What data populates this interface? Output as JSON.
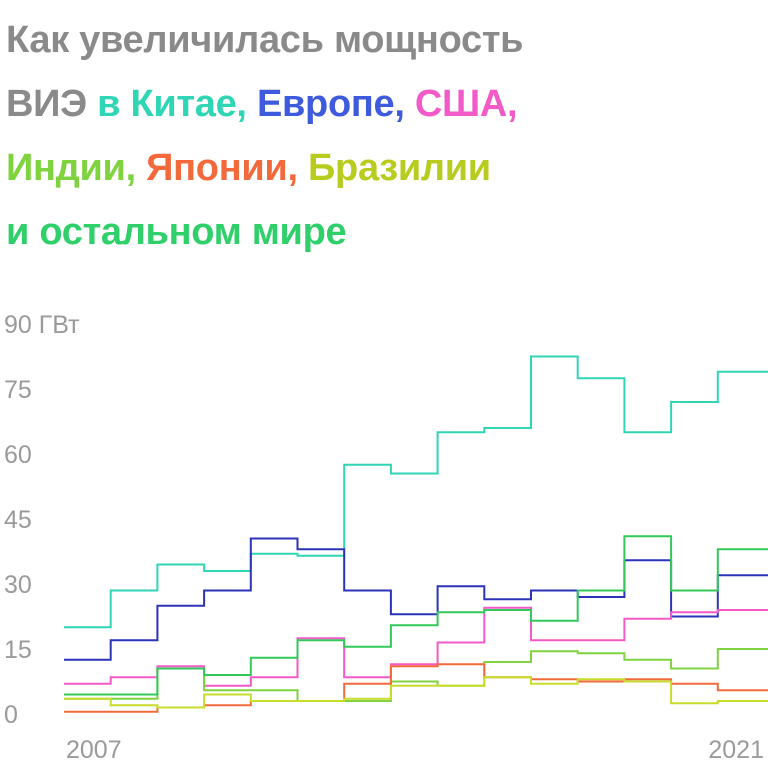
{
  "title": {
    "parts": [
      {
        "text": "Как увеличилась мощность",
        "color": "#8a8a8a"
      },
      {
        "text": "ВИЭ",
        "color": "#8a8a8a"
      },
      {
        "text": "в Китае,",
        "color": "#2fd6b6"
      },
      {
        "text": "Европе,",
        "color": "#3f5bdd"
      },
      {
        "text": "США,",
        "color": "#f25ac8"
      },
      {
        "text": "Индии,",
        "color": "#7ed33f"
      },
      {
        "text": "Японии,",
        "color": "#f26a3c"
      },
      {
        "text": "Бразилии",
        "color": "#b8cc1f"
      },
      {
        "text": "и остальном мире",
        "color": "#2fd06a"
      }
    ]
  },
  "chart_data": {
    "type": "line",
    "step": true,
    "unit": "ГВт",
    "ylim": [
      0,
      90
    ],
    "yticks": [
      0,
      15,
      30,
      45,
      60,
      75,
      90
    ],
    "ytick_labels": [
      "0",
      "15",
      "30",
      "45",
      "60",
      "75",
      "90 ГВт"
    ],
    "x_labels": [
      "2007",
      "2021"
    ],
    "x": [
      2007,
      2008,
      2009,
      2010,
      2011,
      2012,
      2013,
      2014,
      2015,
      2016,
      2017,
      2018,
      2019,
      2020,
      2021,
      2022
    ],
    "grid": false,
    "series": [
      {
        "name": "Китай",
        "color": "#2fd6b6",
        "values": [
          20,
          28.5,
          34.5,
          33,
          37,
          36.5,
          57.5,
          55.5,
          65,
          66,
          82.5,
          77.5,
          65,
          72,
          79,
          79
        ]
      },
      {
        "name": "Европа",
        "color": "#2b33b8",
        "values": [
          12.5,
          17,
          25,
          28.5,
          40.5,
          38,
          28.5,
          23,
          29.5,
          26.5,
          28.5,
          27,
          35.5,
          22.5,
          32,
          32
        ]
      },
      {
        "name": "США",
        "color": "#f25ac8",
        "values": [
          7,
          8.5,
          11,
          6.5,
          8.5,
          17.5,
          8.5,
          11.5,
          16.5,
          24.5,
          17,
          17,
          22,
          23.5,
          24,
          24
        ]
      },
      {
        "name": "Индия",
        "color": "#7ed33f",
        "values": [
          3.5,
          3.5,
          10.5,
          5.5,
          5.5,
          3,
          3,
          7.5,
          6.5,
          12,
          14.5,
          14,
          12.5,
          10.5,
          15,
          15
        ]
      },
      {
        "name": "Япония",
        "color": "#f26a3c",
        "values": [
          0.5,
          0.5,
          1.5,
          2,
          3,
          3,
          7,
          11,
          11.5,
          8.5,
          8,
          7.5,
          8,
          7,
          5.5,
          5.5
        ]
      },
      {
        "name": "Бразилия",
        "color": "#c8dc2a",
        "values": [
          3.5,
          2,
          1.5,
          4.5,
          3,
          3,
          3.5,
          6.5,
          6.5,
          8.5,
          7,
          8,
          7.5,
          2.5,
          3,
          3
        ]
      },
      {
        "name": "Остальной мир",
        "color": "#33c95a",
        "values": [
          4.5,
          4.5,
          10.5,
          9,
          13,
          17,
          15.5,
          20.5,
          23.5,
          24,
          21.5,
          28.5,
          41,
          28.5,
          38,
          38
        ]
      }
    ]
  }
}
